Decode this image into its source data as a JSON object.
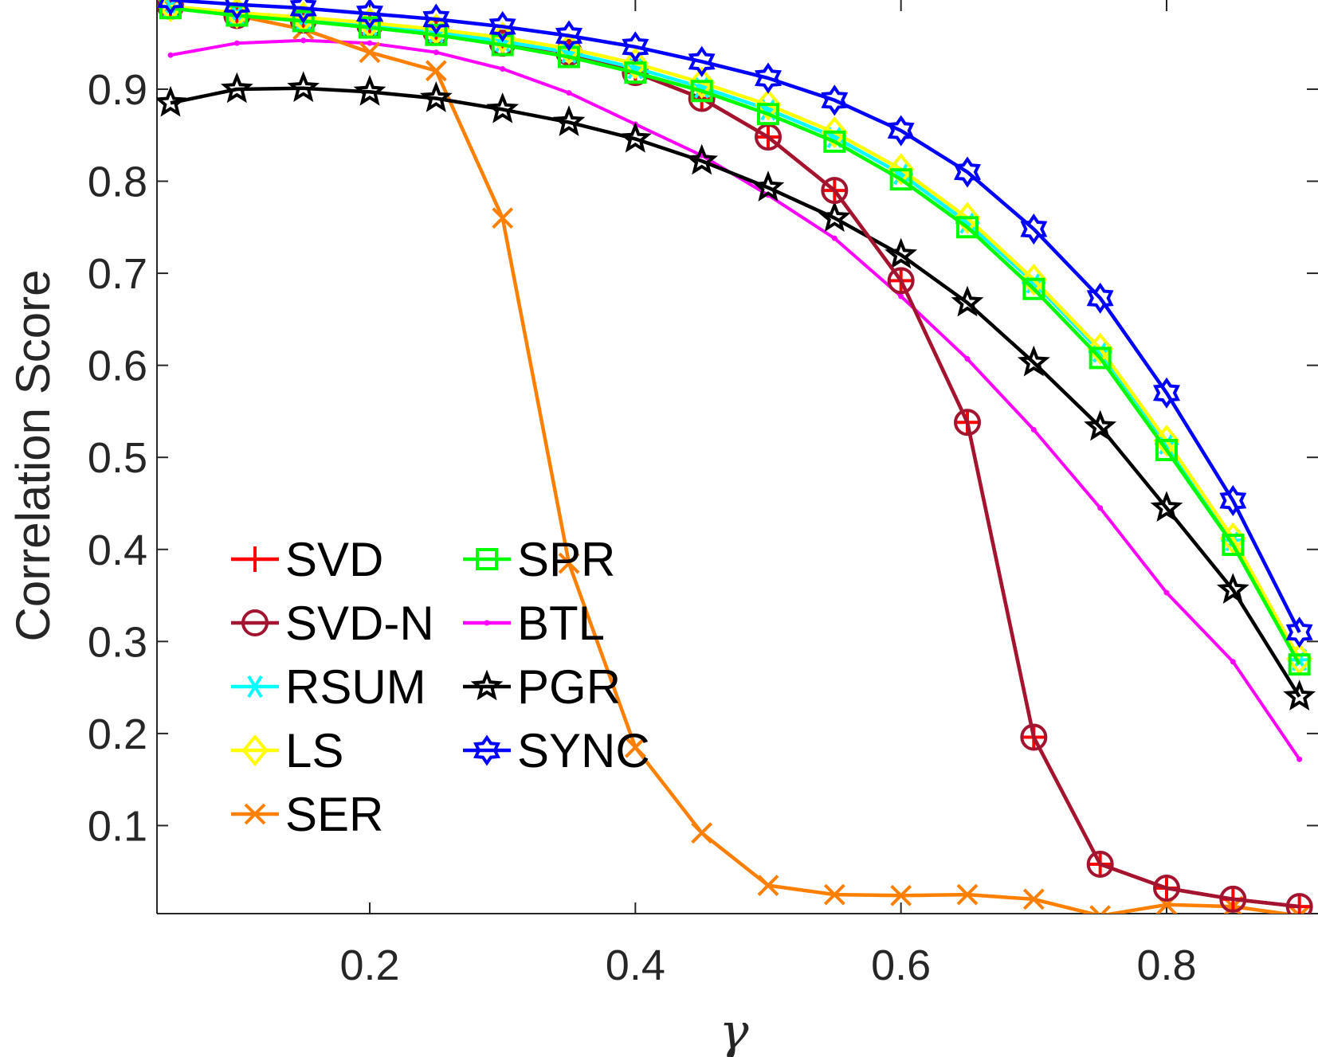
{
  "chart_data": {
    "type": "line",
    "title": "",
    "xlabel": "γ",
    "ylabel": "Correlation Score",
    "xlim": [
      0.04,
      0.9
    ],
    "ylim": [
      0,
      1
    ],
    "xticks": [
      0.2,
      0.4,
      0.6,
      0.8
    ],
    "xtick_labels": [
      "0.2",
      "0.4",
      "0.6",
      "0.8"
    ],
    "yticks": [
      0.1,
      0.2,
      0.3,
      0.4,
      0.5,
      0.6,
      0.7,
      0.8,
      0.9
    ],
    "ytick_labels": [
      "0.1",
      "0.2",
      "0.3",
      "0.4",
      "0.5",
      "0.6",
      "0.7",
      "0.8",
      "0.9"
    ],
    "grid": false,
    "legend_position": "bottom-left",
    "x": [
      0.05,
      0.1,
      0.15,
      0.2,
      0.25,
      0.3,
      0.35,
      0.4,
      0.45,
      0.5,
      0.55,
      0.6,
      0.65,
      0.7,
      0.75,
      0.8,
      0.85,
      0.9
    ],
    "series": [
      {
        "name": "SVD",
        "color": "#ff0000",
        "marker": "plus",
        "values": [
          0.99,
          0.98,
          0.975,
          0.97,
          0.962,
          0.95,
          0.94,
          0.918,
          0.89,
          0.848,
          0.79,
          0.692,
          0.538,
          0.196,
          0.058,
          0.032,
          0.02,
          0.012
        ]
      },
      {
        "name": "SVD-N",
        "color": "#a2142f",
        "marker": "circle",
        "values": [
          0.99,
          0.98,
          0.975,
          0.97,
          0.962,
          0.95,
          0.94,
          0.918,
          0.89,
          0.848,
          0.79,
          0.692,
          0.538,
          0.196,
          0.058,
          0.032,
          0.02,
          0.012
        ]
      },
      {
        "name": "RSUM",
        "color": "#00ffff",
        "marker": "asterisk",
        "values": [
          0.99,
          0.982,
          0.976,
          0.97,
          0.962,
          0.952,
          0.94,
          0.923,
          0.902,
          0.878,
          0.848,
          0.808,
          0.755,
          0.69,
          0.615,
          0.515,
          0.41,
          0.28
        ]
      },
      {
        "name": "LS",
        "color": "#ffff00",
        "marker": "diamond",
        "values": [
          0.99,
          0.983,
          0.978,
          0.972,
          0.965,
          0.956,
          0.944,
          0.928,
          0.907,
          0.883,
          0.853,
          0.813,
          0.76,
          0.693,
          0.618,
          0.518,
          0.412,
          0.281
        ]
      },
      {
        "name": "SER",
        "color": "#ff8000",
        "marker": "x",
        "values": [
          0.99,
          0.98,
          0.965,
          0.94,
          0.92,
          0.76,
          0.385,
          0.185,
          0.092,
          0.035,
          0.025,
          0.024,
          0.025,
          0.02,
          0.002,
          0.014,
          0.012,
          0.002
        ]
      },
      {
        "name": "SPR",
        "color": "#00ff00",
        "marker": "square",
        "values": [
          0.988,
          0.98,
          0.974,
          0.967,
          0.959,
          0.948,
          0.935,
          0.918,
          0.898,
          0.873,
          0.843,
          0.802,
          0.75,
          0.683,
          0.608,
          0.508,
          0.405,
          0.275
        ]
      },
      {
        "name": "BTL",
        "color": "#ff00ff",
        "marker": "dot",
        "values": [
          0.937,
          0.95,
          0.953,
          0.95,
          0.94,
          0.922,
          0.896,
          0.862,
          0.828,
          0.785,
          0.738,
          0.675,
          0.607,
          0.53,
          0.445,
          0.353,
          0.278,
          0.172
        ]
      },
      {
        "name": "PGR",
        "color": "#000000",
        "marker": "pentagram",
        "values": [
          0.885,
          0.9,
          0.901,
          0.897,
          0.89,
          0.878,
          0.864,
          0.846,
          0.822,
          0.793,
          0.76,
          0.72,
          0.668,
          0.603,
          0.533,
          0.445,
          0.356,
          0.24
        ]
      },
      {
        "name": "SYNC",
        "color": "#0000ff",
        "marker": "hexagram",
        "values": [
          0.997,
          0.992,
          0.988,
          0.982,
          0.976,
          0.968,
          0.958,
          0.946,
          0.93,
          0.912,
          0.888,
          0.855,
          0.81,
          0.748,
          0.673,
          0.57,
          0.453,
          0.31
        ]
      }
    ]
  }
}
